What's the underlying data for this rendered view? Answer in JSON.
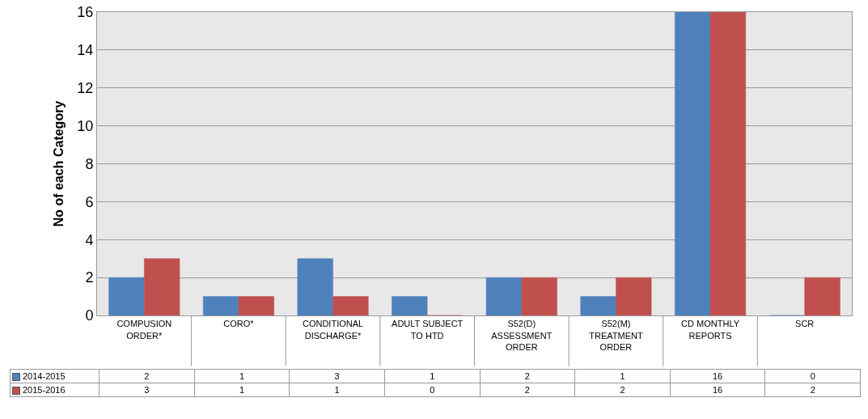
{
  "chart_data": {
    "type": "bar",
    "ylabel": "No of each Category",
    "categories": [
      "COMPUSION ORDER*",
      "CORO*",
      "CONDITIONAL DISCHARGE*",
      "ADULT SUBJECT TO HTD",
      "S52(D) ASSESSMENT ORDER",
      "S52(M) TREATMENT ORDER",
      "CD MONTHLY REPORTS",
      "SCR"
    ],
    "series": [
      {
        "name": "2014-2015",
        "color": "#4f81bd",
        "values": [
          2,
          1,
          3,
          1,
          2,
          1,
          16,
          0
        ]
      },
      {
        "name": "2015-2016",
        "color": "#c0504d",
        "values": [
          3,
          1,
          1,
          0,
          2,
          2,
          16,
          2
        ]
      }
    ],
    "ylim": [
      0,
      16
    ],
    "yticks": [
      0,
      2,
      4,
      6,
      8,
      10,
      12,
      14,
      16
    ],
    "grid": "y",
    "legend": "bottom",
    "data_labels": true
  }
}
